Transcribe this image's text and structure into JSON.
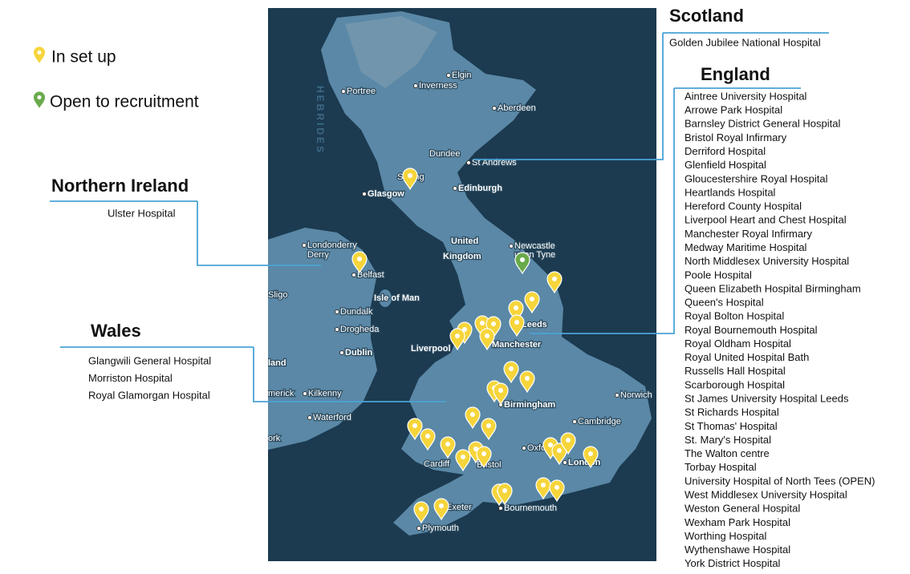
{
  "legend": [
    {
      "label": "In set up",
      "color": "#f6d53b"
    },
    {
      "label": "Open to recruitment",
      "color": "#6aaa4b"
    }
  ],
  "regions": [
    {
      "name": "Scotland",
      "hospitals": [
        "Golden Jubilee National Hospital"
      ]
    },
    {
      "name": "England",
      "hospitals": [
        "Aintree University Hospital",
        "Arrowe Park Hospital",
        "Barnsley District General Hospital",
        "Bristol Royal Infirmary",
        "Derriford Hospital",
        "Glenfield Hospital",
        "Gloucestershire Royal Hospital",
        "Heartlands Hospital",
        "Hereford County Hospital",
        "Liverpool Heart and Chest Hospital",
        "Manchester Royal Infirmary",
        "Medway Maritime Hospital",
        "North Middlesex University Hospital",
        "Poole Hospital",
        "Queen Elizabeth Hospital Birmingham",
        "Queen's Hospital",
        "Royal Bolton Hospital",
        "Royal Bournemouth Hospital",
        "Royal Oldham Hospital",
        "Royal United Hospital Bath",
        "Russells Hall Hospital",
        "Scarborough Hospital",
        "St James University Hospital Leeds",
        "St Richards Hospital",
        "St Thomas' Hospital",
        "St. Mary's Hospital",
        "The Walton centre",
        "Torbay Hospital",
        "University Hospital of North Tees (OPEN)",
        "West Middlesex University Hospital",
        "Weston General Hospital",
        "Wexham Park Hospital",
        "Worthing Hospital",
        "Wythenshawe Hospital",
        "York District Hospital"
      ]
    },
    {
      "name": "Northern Ireland",
      "hospitals": [
        "Ulster Hospital"
      ]
    },
    {
      "name": "Wales",
      "hospitals": [
        "Glangwili General Hospital",
        "Morriston Hospital",
        "Royal Glamorgan Hospital"
      ]
    }
  ],
  "map_labels": [
    "HEBRIDES",
    "Elgin",
    "Inverness",
    "Portree",
    "Aberdeen",
    "Dundee",
    "St Andrews",
    "Stirling",
    "Glasgow",
    "Edinburgh",
    "United",
    "Kingdom",
    "Newcastle",
    "upon Tyne",
    "Londonderry",
    "Derry",
    "Belfast",
    "Isle of Man",
    "Sligo",
    "Dundalk",
    "Drogheda",
    "Dublin",
    "Liverpool",
    "Manchester",
    "Leeds",
    "Birmingham",
    "Norwich",
    "Cambridge",
    "land",
    "merick",
    "Kilkenny",
    "Waterford",
    "ork",
    "Cardiff",
    "Bristol",
    "Oxford",
    "London",
    "Exeter",
    "Plymouth",
    "Bournemouth"
  ]
}
